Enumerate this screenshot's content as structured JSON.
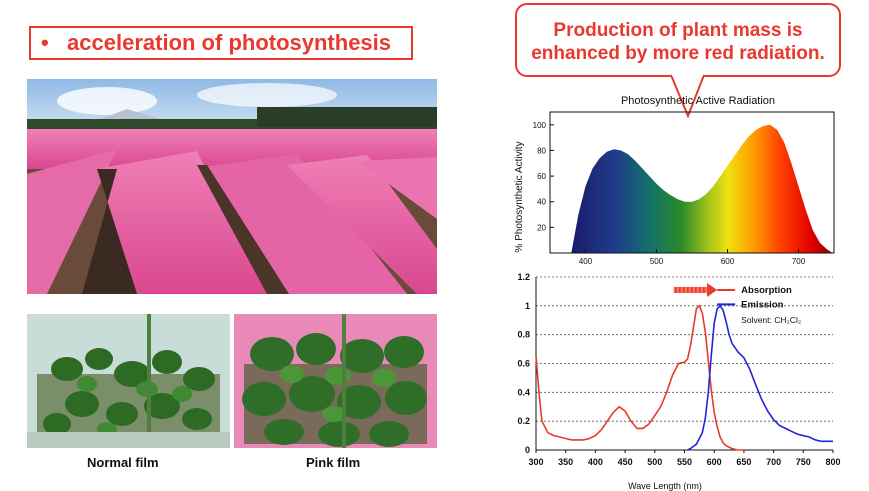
{
  "slide": {
    "title": "acceleration of photosynthesis",
    "bullet": "•",
    "callout": [
      "Production of plant mass is",
      "enhanced by more red radiation."
    ],
    "caption_normal": "Normal film",
    "caption_pink": "Pink film"
  },
  "colors": {
    "accent": "#e8392e",
    "absorption": "#e8392e",
    "emission": "#2222dd"
  },
  "chart_data": [
    {
      "type": "area",
      "title": "Photosynthetic Active Radiation",
      "ylabel": "% Photosynthetic Activity",
      "xlabel": "",
      "xlim": [
        350,
        750
      ],
      "ylim": [
        0,
        110
      ],
      "xticks": [
        "400",
        "500",
        "600",
        "700"
      ],
      "yticks": [
        "20",
        "40",
        "60",
        "80",
        "100"
      ],
      "x": [
        380,
        390,
        400,
        410,
        420,
        430,
        440,
        450,
        460,
        470,
        480,
        490,
        500,
        510,
        520,
        530,
        540,
        550,
        560,
        570,
        580,
        590,
        600,
        610,
        620,
        630,
        640,
        650,
        660,
        670,
        680,
        690,
        700,
        710,
        720,
        730,
        740,
        748
      ],
      "y": [
        0,
        30,
        52,
        66,
        74,
        79,
        81,
        80,
        77,
        72,
        66,
        60,
        54,
        49,
        45,
        42,
        40,
        40,
        42,
        46,
        52,
        60,
        68,
        76,
        84,
        91,
        96,
        99,
        100,
        96,
        86,
        70,
        52,
        34,
        18,
        8,
        3,
        0
      ]
    },
    {
      "type": "line",
      "xlabel": "Wave Length (nm)",
      "ylabel": "",
      "xlim": [
        300,
        800
      ],
      "ylim": [
        0,
        1.2
      ],
      "xticks": [
        "300",
        "350",
        "400",
        "450",
        "500",
        "550",
        "600",
        "650",
        "700",
        "750",
        "800"
      ],
      "yticks": [
        "0",
        "0.2",
        "0.4",
        "0.6",
        "0.8",
        "1",
        "1.2"
      ],
      "legend": {
        "placement": "top-right",
        "note": "Solvent: CH₂Cl₂"
      },
      "series": [
        {
          "name": "Absorption",
          "x": [
            300,
            305,
            310,
            320,
            330,
            340,
            350,
            360,
            370,
            380,
            390,
            400,
            410,
            420,
            430,
            440,
            450,
            460,
            470,
            480,
            490,
            500,
            510,
            520,
            530,
            540,
            550,
            555,
            560,
            565,
            570,
            575,
            580,
            585,
            590,
            595,
            600,
            605,
            610,
            615,
            620,
            630,
            640,
            650
          ],
          "y": [
            0.65,
            0.4,
            0.2,
            0.12,
            0.1,
            0.09,
            0.08,
            0.07,
            0.07,
            0.07,
            0.08,
            0.1,
            0.14,
            0.2,
            0.26,
            0.3,
            0.27,
            0.2,
            0.15,
            0.15,
            0.18,
            0.24,
            0.3,
            0.4,
            0.52,
            0.6,
            0.61,
            0.63,
            0.72,
            0.85,
            0.98,
            1.0,
            0.95,
            0.82,
            0.62,
            0.42,
            0.26,
            0.16,
            0.09,
            0.05,
            0.03,
            0.01,
            0.0,
            0.0
          ]
        },
        {
          "name": "Emission",
          "x": [
            555,
            560,
            570,
            580,
            585,
            590,
            595,
            600,
            605,
            610,
            615,
            620,
            625,
            630,
            640,
            650,
            660,
            670,
            680,
            690,
            700,
            710,
            720,
            730,
            740,
            750,
            760,
            770,
            780,
            790,
            800
          ],
          "y": [
            0.0,
            0.01,
            0.04,
            0.12,
            0.22,
            0.4,
            0.65,
            0.88,
            0.98,
            1.0,
            0.97,
            0.89,
            0.8,
            0.74,
            0.68,
            0.64,
            0.56,
            0.45,
            0.35,
            0.27,
            0.21,
            0.17,
            0.15,
            0.13,
            0.11,
            0.1,
            0.09,
            0.07,
            0.06,
            0.06,
            0.06
          ]
        }
      ]
    }
  ]
}
